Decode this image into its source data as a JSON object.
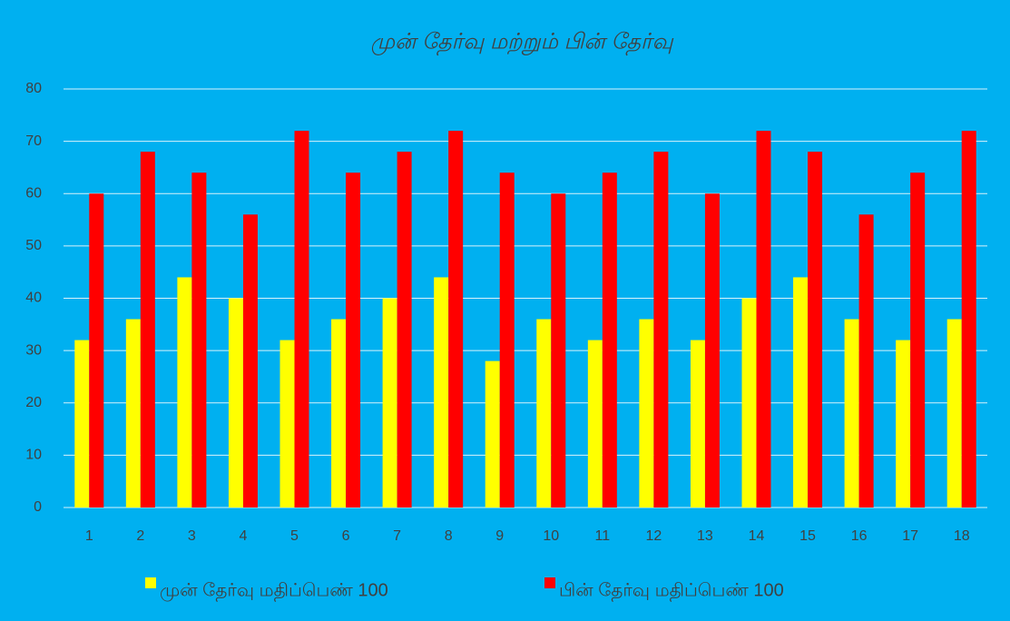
{
  "chart_data": {
    "type": "bar",
    "title": "முன் தேர்வு மற்றும் பின் தேர்வு",
    "categories": [
      "1",
      "2",
      "3",
      "4",
      "5",
      "6",
      "7",
      "8",
      "9",
      "10",
      "11",
      "12",
      "13",
      "14",
      "15",
      "16",
      "17",
      "18"
    ],
    "series": [
      {
        "name": "முன் தேர்வு மதிப்பெண் 100",
        "color": "#ffff00",
        "values": [
          32,
          36,
          44,
          40,
          32,
          36,
          40,
          44,
          28,
          36,
          32,
          36,
          32,
          40,
          44,
          36,
          32,
          36
        ]
      },
      {
        "name": "பின் தேர்வு மதிப்பெண் 100",
        "color": "#ff0000",
        "values": [
          60,
          68,
          64,
          56,
          72,
          64,
          68,
          72,
          64,
          60,
          64,
          68,
          60,
          72,
          68,
          56,
          64,
          72
        ]
      }
    ],
    "ylim": [
      0,
      80
    ],
    "yticks": [
      0,
      10,
      20,
      30,
      40,
      50,
      60,
      70,
      80
    ],
    "grid": true,
    "legend": "bottom"
  }
}
